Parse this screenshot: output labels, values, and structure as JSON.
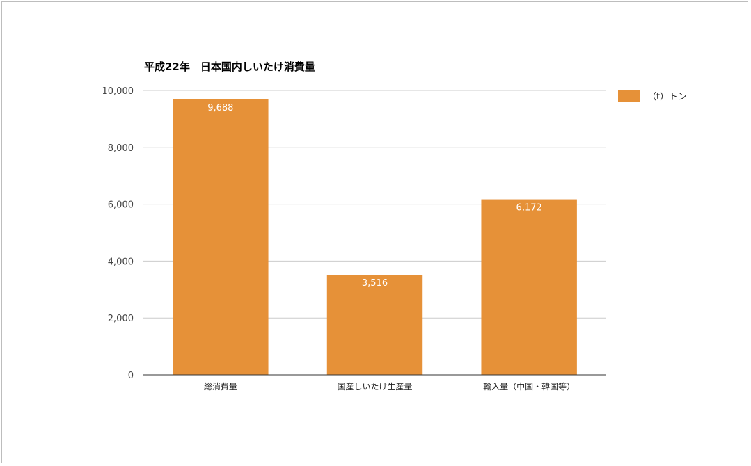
{
  "chart_data": {
    "type": "bar",
    "title": "平成22年　日本国内しいたけ消費量",
    "xlabel": "",
    "ylabel": "",
    "categories": [
      "総消費量",
      "国産しいたけ生産量",
      "輸入量（中国・韓国等）"
    ],
    "series": [
      {
        "name": "（t）トン",
        "values": [
          9688,
          3516,
          6172
        ],
        "data_labels": [
          "9,688",
          "3,516",
          "6,172"
        ],
        "color": "#e69138"
      }
    ],
    "ylim": [
      0,
      10000
    ],
    "yticks": [
      0,
      2000,
      4000,
      6000,
      8000,
      10000
    ],
    "ytick_labels": [
      "0",
      "2,000",
      "4,000",
      "6,000",
      "8,000",
      "10,000"
    ],
    "grid": true,
    "legend_position": "right"
  }
}
